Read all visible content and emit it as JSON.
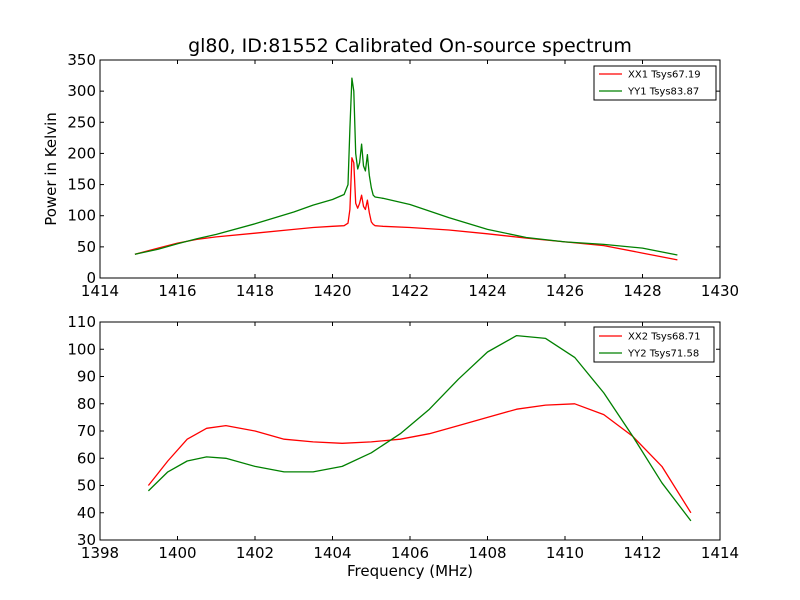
{
  "chart_data": [
    {
      "type": "line",
      "title": "gl80, ID:81552 Calibrated On-source spectrum",
      "xlabel": "",
      "ylabel": "Power in Kelvin",
      "xlim": [
        1414,
        1430
      ],
      "ylim": [
        0,
        350
      ],
      "xticks": [
        1414,
        1416,
        1418,
        1420,
        1422,
        1424,
        1426,
        1428,
        1430
      ],
      "yticks": [
        0,
        50,
        100,
        150,
        200,
        250,
        300,
        350
      ],
      "legend_position": "top-right",
      "series": [
        {
          "name": "XX1 Tsys67.19",
          "color": "#ff0000",
          "x": [
            1414.9,
            1415.5,
            1416,
            1416.5,
            1417,
            1418,
            1419,
            1419.5,
            1420,
            1420.3,
            1420.4,
            1420.45,
            1420.5,
            1420.55,
            1420.6,
            1420.65,
            1420.7,
            1420.75,
            1420.8,
            1420.85,
            1420.9,
            1420.95,
            1421,
            1421.05,
            1421.1,
            1421.3,
            1422,
            1423,
            1424,
            1425,
            1426,
            1427,
            1428,
            1428.9
          ],
          "y": [
            38,
            48,
            56,
            62,
            66,
            72,
            78,
            81,
            83,
            84,
            88,
            110,
            193,
            185,
            120,
            112,
            120,
            133,
            115,
            110,
            125,
            105,
            90,
            86,
            84,
            83,
            81,
            77,
            71,
            64,
            58,
            52,
            40,
            29
          ]
        },
        {
          "name": "YY1 Tsys83.87",
          "color": "#008000",
          "x": [
            1414.9,
            1415.5,
            1416,
            1416.5,
            1417,
            1418,
            1419,
            1419.5,
            1420,
            1420.3,
            1420.4,
            1420.45,
            1420.5,
            1420.55,
            1420.6,
            1420.65,
            1420.7,
            1420.75,
            1420.8,
            1420.85,
            1420.9,
            1420.95,
            1421,
            1421.05,
            1421.1,
            1421.3,
            1422,
            1423,
            1424,
            1425,
            1426,
            1427,
            1428,
            1428.9
          ],
          "y": [
            38,
            46,
            55,
            63,
            70,
            87,
            106,
            117,
            126,
            134,
            150,
            240,
            321,
            300,
            200,
            175,
            185,
            215,
            180,
            172,
            198,
            165,
            145,
            133,
            130,
            128,
            118,
            97,
            78,
            65,
            58,
            54,
            48,
            37
          ]
        }
      ]
    },
    {
      "type": "line",
      "title": "",
      "xlabel": "Frequency (MHz)",
      "ylabel": "",
      "xlim": [
        1398,
        1414
      ],
      "ylim": [
        30,
        110
      ],
      "xticks": [
        1398,
        1400,
        1402,
        1404,
        1406,
        1408,
        1410,
        1412,
        1414
      ],
      "yticks": [
        30,
        40,
        50,
        60,
        70,
        80,
        90,
        100,
        110
      ],
      "legend_position": "top-right",
      "series": [
        {
          "name": "XX2 Tsys68.71",
          "color": "#ff0000",
          "x": [
            1399.25,
            1399.75,
            1400.25,
            1400.75,
            1401.25,
            1402,
            1402.75,
            1403.5,
            1404.25,
            1405,
            1405.75,
            1406.5,
            1407.25,
            1408,
            1408.75,
            1409.5,
            1410.25,
            1411,
            1411.75,
            1412.5,
            1413.25
          ],
          "y": [
            50,
            59,
            67,
            71,
            72,
            70,
            67,
            66,
            65.5,
            66,
            67,
            69,
            72,
            75,
            78,
            79.5,
            80,
            76,
            68,
            57,
            40
          ]
        },
        {
          "name": "YY2 Tsys71.58",
          "color": "#008000",
          "x": [
            1399.25,
            1399.75,
            1400.25,
            1400.75,
            1401.25,
            1402,
            1402.75,
            1403.5,
            1404.25,
            1405,
            1405.75,
            1406.5,
            1407.25,
            1408,
            1408.75,
            1409.5,
            1410.25,
            1411,
            1411.75,
            1412.5,
            1413.25
          ],
          "y": [
            48,
            55,
            59,
            60.5,
            60,
            57,
            55,
            55,
            57,
            62,
            69,
            78,
            89,
            99,
            105,
            104,
            97,
            84,
            68,
            51,
            37
          ]
        }
      ]
    }
  ]
}
